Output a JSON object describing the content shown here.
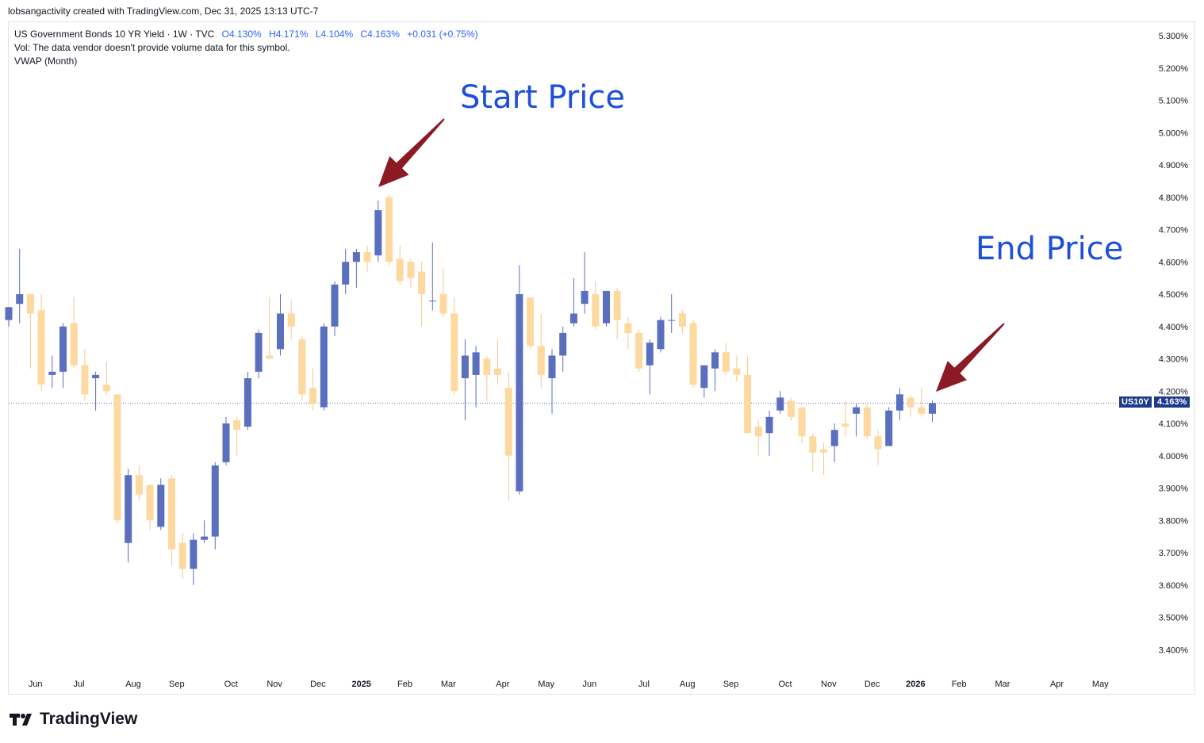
{
  "header": {
    "created_by": "lobsangactivity created with TradingView.com, Dec 31, 2025 13:13 UTC-7"
  },
  "legend": {
    "symbol_line": "US Government Bonds 10 YR Yield · 1W · TVC",
    "open": "O4.130%",
    "high": "H4.171%",
    "low": "L4.104%",
    "close": "C4.163%",
    "change": "+0.031 (+0.75%)",
    "vol_line": "Vol: The data vendor doesn't provide volume data for this symbol.",
    "vwap_line": "VWAP (Month)"
  },
  "annotations": {
    "start_label": "Start Price",
    "end_label": "End Price"
  },
  "price_tag": {
    "symbol": "US10Y",
    "value": "4.163%"
  },
  "logo": {
    "text": "TradingView"
  },
  "colors": {
    "up": "#5b6fbf",
    "down": "#fdd9a0",
    "down_wick": "#f5c98a",
    "arrow": "#8b1a24",
    "annotation": "#1d4fd8",
    "tag": "#1e3a8a"
  },
  "chart_data": {
    "type": "candlestick",
    "title": "US Government Bonds 10 YR Yield · 1W · TVC",
    "ylim": [
      3.33,
      5.36
    ],
    "current_price": 4.163,
    "y_ticks": [
      "5.300%",
      "5.200%",
      "5.100%",
      "5.000%",
      "4.900%",
      "4.800%",
      "4.700%",
      "4.600%",
      "4.500%",
      "4.400%",
      "4.300%",
      "4.200%",
      "4.100%",
      "4.000%",
      "3.900%",
      "3.800%",
      "3.700%",
      "3.600%",
      "3.500%",
      "3.400%"
    ],
    "x_ticks": [
      {
        "label": "Jun",
        "bold": false
      },
      {
        "label": "Jul",
        "bold": false
      },
      {
        "label": "Aug",
        "bold": false
      },
      {
        "label": "Sep",
        "bold": false
      },
      {
        "label": "Oct",
        "bold": false
      },
      {
        "label": "Nov",
        "bold": false
      },
      {
        "label": "Dec",
        "bold": false
      },
      {
        "label": "2025",
        "bold": true
      },
      {
        "label": "Feb",
        "bold": false
      },
      {
        "label": "Mar",
        "bold": false
      },
      {
        "label": "Apr",
        "bold": false
      },
      {
        "label": "May",
        "bold": false
      },
      {
        "label": "Jun",
        "bold": false
      },
      {
        "label": "Jul",
        "bold": false
      },
      {
        "label": "Aug",
        "bold": false
      },
      {
        "label": "Sep",
        "bold": false
      },
      {
        "label": "Oct",
        "bold": false
      },
      {
        "label": "Nov",
        "bold": false
      },
      {
        "label": "Dec",
        "bold": false
      },
      {
        "label": "2026",
        "bold": true
      },
      {
        "label": "Feb",
        "bold": false
      },
      {
        "label": "Mar",
        "bold": false
      },
      {
        "label": "Apr",
        "bold": false
      },
      {
        "label": "May",
        "bold": false
      }
    ],
    "x_tick_weeks": [
      1,
      5,
      10,
      14,
      19,
      23,
      27,
      31,
      35,
      39,
      44,
      48,
      52,
      57,
      61,
      65,
      70,
      74,
      78,
      82,
      86,
      90,
      95,
      99
    ],
    "candles": [
      {
        "o": 4.42,
        "h": 4.46,
        "l": 4.4,
        "c": 4.46
      },
      {
        "o": 4.47,
        "h": 4.64,
        "l": 4.41,
        "c": 4.5
      },
      {
        "o": 4.5,
        "h": 4.5,
        "l": 4.27,
        "c": 4.44
      },
      {
        "o": 4.45,
        "h": 4.5,
        "l": 4.2,
        "c": 4.22
      },
      {
        "o": 4.25,
        "h": 4.31,
        "l": 4.21,
        "c": 4.26
      },
      {
        "o": 4.26,
        "h": 4.41,
        "l": 4.21,
        "c": 4.4
      },
      {
        "o": 4.41,
        "h": 4.49,
        "l": 4.27,
        "c": 4.28
      },
      {
        "o": 4.28,
        "h": 4.33,
        "l": 4.17,
        "c": 4.19
      },
      {
        "o": 4.24,
        "h": 4.26,
        "l": 4.14,
        "c": 4.25
      },
      {
        "o": 4.22,
        "h": 4.29,
        "l": 4.19,
        "c": 4.2
      },
      {
        "o": 4.19,
        "h": 4.19,
        "l": 3.79,
        "c": 3.8
      },
      {
        "o": 3.73,
        "h": 3.96,
        "l": 3.67,
        "c": 3.94
      },
      {
        "o": 3.94,
        "h": 3.97,
        "l": 3.86,
        "c": 3.88
      },
      {
        "o": 3.91,
        "h": 3.91,
        "l": 3.77,
        "c": 3.8
      },
      {
        "o": 3.78,
        "h": 3.93,
        "l": 3.77,
        "c": 3.91
      },
      {
        "o": 3.93,
        "h": 3.94,
        "l": 3.66,
        "c": 3.71
      },
      {
        "o": 3.73,
        "h": 3.76,
        "l": 3.62,
        "c": 3.65
      },
      {
        "o": 3.65,
        "h": 3.76,
        "l": 3.6,
        "c": 3.74
      },
      {
        "o": 3.74,
        "h": 3.8,
        "l": 3.73,
        "c": 3.75
      },
      {
        "o": 3.75,
        "h": 3.98,
        "l": 3.71,
        "c": 3.97
      },
      {
        "o": 3.98,
        "h": 4.12,
        "l": 3.97,
        "c": 4.1
      },
      {
        "o": 4.11,
        "h": 4.12,
        "l": 4.0,
        "c": 4.08
      },
      {
        "o": 4.09,
        "h": 4.26,
        "l": 4.08,
        "c": 4.24
      },
      {
        "o": 4.26,
        "h": 4.39,
        "l": 4.24,
        "c": 4.38
      },
      {
        "o": 4.31,
        "h": 4.49,
        "l": 4.3,
        "c": 4.3
      },
      {
        "o": 4.33,
        "h": 4.5,
        "l": 4.31,
        "c": 4.44
      },
      {
        "o": 4.44,
        "h": 4.48,
        "l": 4.36,
        "c": 4.4
      },
      {
        "o": 4.36,
        "h": 4.37,
        "l": 4.17,
        "c": 4.19
      },
      {
        "o": 4.21,
        "h": 4.27,
        "l": 4.14,
        "c": 4.16
      },
      {
        "o": 4.15,
        "h": 4.41,
        "l": 4.14,
        "c": 4.4
      },
      {
        "o": 4.4,
        "h": 4.54,
        "l": 4.37,
        "c": 4.53
      },
      {
        "o": 4.53,
        "h": 4.64,
        "l": 4.5,
        "c": 4.6
      },
      {
        "o": 4.6,
        "h": 4.64,
        "l": 4.52,
        "c": 4.63
      },
      {
        "o": 4.63,
        "h": 4.65,
        "l": 4.57,
        "c": 4.6
      },
      {
        "o": 4.62,
        "h": 4.79,
        "l": 4.6,
        "c": 4.76
      },
      {
        "o": 4.8,
        "h": 4.81,
        "l": 4.59,
        "c": 4.6
      },
      {
        "o": 4.61,
        "h": 4.65,
        "l": 4.53,
        "c": 4.54
      },
      {
        "o": 4.6,
        "h": 4.61,
        "l": 4.52,
        "c": 4.55
      },
      {
        "o": 4.57,
        "h": 4.6,
        "l": 4.4,
        "c": 4.5
      },
      {
        "o": 4.48,
        "h": 4.66,
        "l": 4.45,
        "c": 4.48
      },
      {
        "o": 4.5,
        "h": 4.58,
        "l": 4.43,
        "c": 4.44
      },
      {
        "o": 4.44,
        "h": 4.49,
        "l": 4.19,
        "c": 4.2
      },
      {
        "o": 4.24,
        "h": 4.36,
        "l": 4.11,
        "c": 4.31
      },
      {
        "o": 4.25,
        "h": 4.34,
        "l": 4.15,
        "c": 4.32
      },
      {
        "o": 4.3,
        "h": 4.31,
        "l": 4.17,
        "c": 4.25
      },
      {
        "o": 4.27,
        "h": 4.36,
        "l": 4.22,
        "c": 4.25
      },
      {
        "o": 4.21,
        "h": 4.26,
        "l": 3.86,
        "c": 4.0
      },
      {
        "o": 3.89,
        "h": 4.59,
        "l": 3.88,
        "c": 4.5
      },
      {
        "o": 4.49,
        "h": 4.49,
        "l": 4.33,
        "c": 4.34
      },
      {
        "o": 4.34,
        "h": 4.44,
        "l": 4.21,
        "c": 4.25
      },
      {
        "o": 4.24,
        "h": 4.33,
        "l": 4.13,
        "c": 4.31
      },
      {
        "o": 4.31,
        "h": 4.4,
        "l": 4.26,
        "c": 4.38
      },
      {
        "o": 4.41,
        "h": 4.55,
        "l": 4.4,
        "c": 4.44
      },
      {
        "o": 4.47,
        "h": 4.63,
        "l": 4.44,
        "c": 4.51
      },
      {
        "o": 4.5,
        "h": 4.54,
        "l": 4.39,
        "c": 4.4
      },
      {
        "o": 4.41,
        "h": 4.51,
        "l": 4.4,
        "c": 4.51
      },
      {
        "o": 4.51,
        "h": 4.52,
        "l": 4.36,
        "c": 4.42
      },
      {
        "o": 4.41,
        "h": 4.43,
        "l": 4.33,
        "c": 4.38
      },
      {
        "o": 4.38,
        "h": 4.39,
        "l": 4.26,
        "c": 4.27
      },
      {
        "o": 4.28,
        "h": 4.36,
        "l": 4.19,
        "c": 4.35
      },
      {
        "o": 4.33,
        "h": 4.43,
        "l": 4.32,
        "c": 4.42
      },
      {
        "o": 4.42,
        "h": 4.5,
        "l": 4.38,
        "c": 4.42
      },
      {
        "o": 4.44,
        "h": 4.45,
        "l": 4.38,
        "c": 4.4
      },
      {
        "o": 4.41,
        "h": 4.42,
        "l": 4.21,
        "c": 4.22
      },
      {
        "o": 4.21,
        "h": 4.28,
        "l": 4.18,
        "c": 4.28
      },
      {
        "o": 4.27,
        "h": 4.33,
        "l": 4.2,
        "c": 4.32
      },
      {
        "o": 4.32,
        "h": 4.35,
        "l": 4.25,
        "c": 4.26
      },
      {
        "o": 4.27,
        "h": 4.31,
        "l": 4.23,
        "c": 4.25
      },
      {
        "o": 4.25,
        "h": 4.31,
        "l": 4.07,
        "c": 4.07
      },
      {
        "o": 4.09,
        "h": 4.11,
        "l": 4.0,
        "c": 4.06
      },
      {
        "o": 4.07,
        "h": 4.14,
        "l": 4.0,
        "c": 4.12
      },
      {
        "o": 4.14,
        "h": 4.2,
        "l": 4.13,
        "c": 4.18
      },
      {
        "o": 4.17,
        "h": 4.18,
        "l": 4.11,
        "c": 4.12
      },
      {
        "o": 4.15,
        "h": 4.15,
        "l": 4.04,
        "c": 4.06
      },
      {
        "o": 4.06,
        "h": 4.07,
        "l": 3.95,
        "c": 4.01
      },
      {
        "o": 4.02,
        "h": 4.04,
        "l": 3.94,
        "c": 4.01
      },
      {
        "o": 4.03,
        "h": 4.1,
        "l": 3.98,
        "c": 4.08
      },
      {
        "o": 4.1,
        "h": 4.17,
        "l": 4.06,
        "c": 4.09
      },
      {
        "o": 4.13,
        "h": 4.16,
        "l": 4.06,
        "c": 4.15
      },
      {
        "o": 4.15,
        "h": 4.16,
        "l": 4.05,
        "c": 4.06
      },
      {
        "o": 4.06,
        "h": 4.08,
        "l": 3.97,
        "c": 4.02
      },
      {
        "o": 4.03,
        "h": 4.15,
        "l": 4.03,
        "c": 4.14
      },
      {
        "o": 4.14,
        "h": 4.21,
        "l": 4.11,
        "c": 4.19
      },
      {
        "o": 4.18,
        "h": 4.19,
        "l": 4.12,
        "c": 4.15
      },
      {
        "o": 4.15,
        "h": 4.21,
        "l": 4.12,
        "c": 4.13
      },
      {
        "o": 4.13,
        "h": 4.171,
        "l": 4.104,
        "c": 4.163
      }
    ]
  }
}
